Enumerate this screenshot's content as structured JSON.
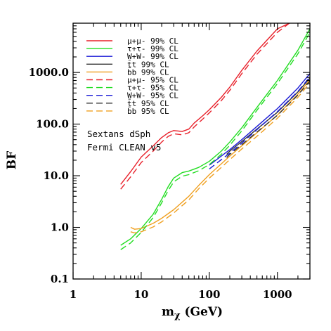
{
  "chart_data": {
    "type": "line",
    "x_scale": "log",
    "y_scale": "log",
    "xlim": [
      1,
      3000
    ],
    "ylim": [
      0.1,
      9000
    ],
    "xlabel": "mχ (GeV)",
    "ylabel": "BF",
    "x_ticks": [
      {
        "value": 1,
        "label": "1"
      },
      {
        "value": 10,
        "label": "10"
      },
      {
        "value": 100,
        "label": "100"
      },
      {
        "value": 1000,
        "label": "1000"
      }
    ],
    "y_ticks": [
      {
        "value": 0.1,
        "label": "0.1"
      },
      {
        "value": 1,
        "label": "1.0"
      },
      {
        "value": 10,
        "label": "10.0"
      },
      {
        "value": 100,
        "label": "100.0"
      },
      {
        "value": 1000,
        "label": "1000.0"
      }
    ],
    "annotations": [
      "Sextans dSph",
      "Fermi CLEAN v5"
    ],
    "legend_position": "top-left",
    "series": [
      {
        "name": "μ+μ- 99% CL",
        "color": "#e8202a",
        "dash": "solid",
        "x": [
          5,
          7,
          10,
          15,
          20,
          25,
          30,
          40,
          50,
          60,
          80,
          100,
          150,
          200,
          300,
          500,
          1000,
          1500
        ],
        "y": [
          6.8,
          12,
          23,
          38,
          55,
          68,
          75,
          72,
          80,
          105,
          145,
          190,
          330,
          520,
          1100,
          2600,
          7000,
          9000
        ]
      },
      {
        "name": "τ+τ- 99% CL",
        "color": "#22dd22",
        "dash": "solid",
        "x": [
          5,
          7,
          10,
          15,
          20,
          25,
          30,
          40,
          50,
          70,
          100,
          150,
          200,
          300,
          500,
          1000,
          2000,
          3000
        ],
        "y": [
          0.45,
          0.6,
          0.95,
          1.8,
          3.5,
          6.2,
          9,
          11.5,
          12.3,
          14.5,
          19,
          30,
          45,
          85,
          210,
          700,
          2700,
          7000
        ]
      },
      {
        "name": "W+W- 99% CL",
        "color": "#1a1ad6",
        "dash": "solid",
        "x": [
          100,
          150,
          200,
          300,
          500,
          1000,
          2000,
          3000
        ],
        "y": [
          16,
          24,
          32,
          50,
          90,
          200,
          500,
          950
        ]
      },
      {
        "name": "t̄t 99% CL",
        "color": "#333333",
        "dash": "solid",
        "x": [
          180,
          200,
          300,
          500,
          1000,
          2000,
          3000
        ],
        "y": [
          26,
          30,
          46,
          80,
          170,
          420,
          780
        ]
      },
      {
        "name": "b̄b 99% CL",
        "color": "#f0a020",
        "dash": "solid",
        "x": [
          7,
          8,
          10,
          15,
          20,
          30,
          50,
          70,
          100,
          150,
          200,
          300,
          500,
          1000,
          2000,
          3000
        ],
        "y": [
          1.0,
          0.92,
          0.95,
          1.2,
          1.5,
          2.2,
          4,
          6.5,
          10.5,
          17,
          24,
          38,
          68,
          150,
          380,
          720
        ]
      },
      {
        "name": "μ+μ- 95% CL",
        "color": "#e8202a",
        "dash": "long",
        "x": [
          5,
          7,
          10,
          15,
          20,
          25,
          30,
          40,
          50,
          60,
          80,
          100,
          150,
          200,
          300,
          500,
          1000,
          1500
        ],
        "y": [
          5.5,
          9.5,
          18,
          30,
          45,
          58,
          65,
          62,
          68,
          88,
          125,
          165,
          285,
          450,
          950,
          2250,
          6000,
          9000
        ]
      },
      {
        "name": "τ+τ- 95% CL",
        "color": "#22dd22",
        "dash": "long",
        "x": [
          5,
          7,
          10,
          15,
          20,
          25,
          30,
          40,
          50,
          70,
          100,
          150,
          200,
          300,
          500,
          1000,
          2000,
          3000
        ],
        "y": [
          0.37,
          0.5,
          0.8,
          1.55,
          3,
          5.2,
          7.6,
          9.8,
          10.5,
          12.5,
          16.5,
          26,
          39,
          74,
          185,
          610,
          2300,
          6000
        ]
      },
      {
        "name": "W+W- 95% CL",
        "color": "#1a1ad6",
        "dash": "long",
        "x": [
          100,
          150,
          200,
          300,
          500,
          1000,
          2000,
          3000
        ],
        "y": [
          13.5,
          20.5,
          27.5,
          43,
          78,
          175,
          430,
          820
        ]
      },
      {
        "name": "t̄t 95% CL",
        "color": "#333333",
        "dash": "long",
        "x": [
          180,
          200,
          300,
          500,
          1000,
          2000,
          3000
        ],
        "y": [
          22.5,
          26,
          40,
          70,
          148,
          365,
          680
        ]
      },
      {
        "name": "b̄b 95% CL",
        "color": "#f0a020",
        "dash": "long",
        "x": [
          7,
          8,
          10,
          15,
          20,
          30,
          50,
          70,
          100,
          150,
          200,
          300,
          500,
          1000,
          2000,
          3000
        ],
        "y": [
          0.82,
          0.78,
          0.82,
          1.02,
          1.28,
          1.9,
          3.4,
          5.6,
          9,
          14.5,
          20.5,
          33,
          58,
          130,
          330,
          630
        ]
      }
    ]
  }
}
